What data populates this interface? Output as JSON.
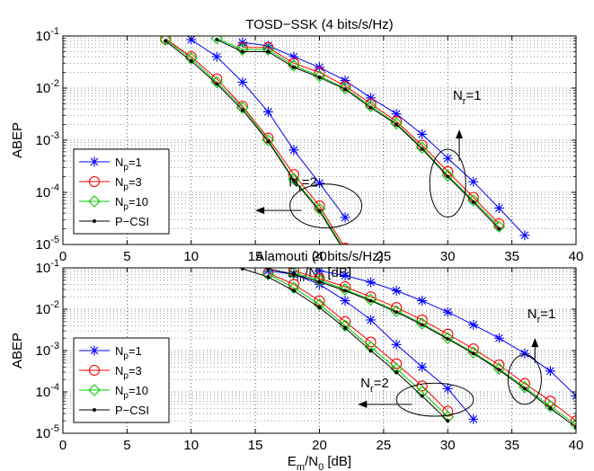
{
  "chart_data": [
    {
      "type": "line",
      "title": "TOSD−SSK (4 bits/s/Hz)",
      "xlabel": {
        "base": "E",
        "sub1": "m",
        "mid": "/N",
        "sub2": "0",
        "tail": " [dB]"
      },
      "ylabel": "ABEP",
      "xlim": [
        0,
        40
      ],
      "ylim_log10": [
        -5,
        -1
      ],
      "x_ticks": [
        0,
        5,
        10,
        15,
        20,
        25,
        30,
        35,
        40
      ],
      "y_ticks": [
        -5,
        -4,
        -3,
        -2,
        -1
      ],
      "y_scale": "log",
      "grid": true,
      "legend": {
        "placement": "bottom-left",
        "entries": [
          {
            "name": "Np=1",
            "main": "N",
            "sub": "p",
            "val": "=1",
            "marker": "star",
            "color": "#0000ff"
          },
          {
            "name": "Np=3",
            "main": "N",
            "sub": "p",
            "val": "=3",
            "marker": "circle",
            "color": "#ff0000"
          },
          {
            "name": "Np=10",
            "main": "N",
            "sub": "p",
            "val": "=10",
            "marker": "diamond",
            "color": "#00cc00"
          },
          {
            "name": "P-CSI",
            "main": "P−CSI",
            "sub": "",
            "val": "",
            "marker": "dot",
            "color": "#000000"
          }
        ]
      },
      "annotations": [
        {
          "main": "N",
          "sub": "r",
          "val": "=2",
          "text_x": 30.2,
          "text_y": 0.000212,
          "ellipse_cx": 20.5,
          "ellipse_cy": 5.5e-05,
          "ellipse_rx_db": 2.8,
          "ellipse_ry_dec": 0.42,
          "arrow_from_x": 18.6,
          "arrow_to_x": 15.0,
          "arrow_y": 4.5e-05,
          "arrow_dir": "left",
          "text_x_db": 17.6,
          "text_y_val": 0.00013
        },
        {
          "main": "N",
          "sub": "r",
          "val": "=1",
          "text_x_db": 30.4,
          "text_y_val": 0.006,
          "ellipse_cx": 30.0,
          "ellipse_cy": 0.00015,
          "ellipse_rx_db": 1.4,
          "ellipse_ry_dec": 0.65,
          "arrow_from_x": 30.9,
          "arrow_y_from": 0.0004,
          "arrow_y_to": 0.0016,
          "arrow_dir": "up"
        }
      ],
      "series": [
        {
          "name": "Np=1, Nr=2",
          "marker": "star",
          "color": "#0000ff",
          "x": [
            10,
            12,
            14,
            16,
            18,
            20,
            22
          ],
          "y": [
            0.085,
            0.04,
            0.013,
            0.0035,
            0.00065,
            0.00015,
            3.3e-05
          ]
        },
        {
          "name": "Np=3, Nr=2",
          "marker": "circle",
          "color": "#ff0000",
          "x": [
            8,
            10,
            12,
            14,
            16,
            18,
            20,
            22
          ],
          "y": [
            0.088,
            0.04,
            0.015,
            0.0045,
            0.0011,
            0.00022,
            5.5e-05,
            8.5e-06
          ]
        },
        {
          "name": "Np=10, Nr=2",
          "marker": "diamond",
          "color": "#00cc00",
          "x": [
            8,
            10,
            12,
            14,
            16,
            18,
            20,
            22
          ],
          "y": [
            0.085,
            0.037,
            0.013,
            0.0042,
            0.001,
            0.00018,
            4.8e-05,
            7.5e-06
          ]
        },
        {
          "name": "P-CSI, Nr=2",
          "marker": "dot",
          "color": "#000000",
          "x": [
            8,
            10,
            12,
            14,
            16,
            18,
            20,
            22
          ],
          "y": [
            0.08,
            0.033,
            0.012,
            0.0038,
            0.00095,
            0.00017,
            4.4e-05,
            7e-06
          ]
        },
        {
          "name": "Np=1, Nr=1",
          "marker": "star",
          "color": "#0000ff",
          "x": [
            14,
            16,
            18,
            20,
            22,
            24,
            26,
            28,
            30,
            32,
            34,
            36
          ],
          "y": [
            0.075,
            0.065,
            0.04,
            0.025,
            0.014,
            0.0065,
            0.0032,
            0.0013,
            0.00045,
            0.00016,
            5e-05,
            1.5e-05
          ]
        },
        {
          "name": "Np=3, Nr=1",
          "marker": "circle",
          "color": "#ff0000",
          "x": [
            14,
            16,
            18,
            20,
            22,
            24,
            26,
            28,
            30,
            32,
            34
          ],
          "y": [
            0.06,
            0.06,
            0.03,
            0.02,
            0.011,
            0.005,
            0.0023,
            0.0008,
            0.00025,
            8e-05,
            2.5e-05
          ]
        },
        {
          "name": "Np=10, Nr=1",
          "marker": "diamond",
          "color": "#00cc00",
          "x": [
            12,
            14,
            16,
            18,
            20,
            22,
            24,
            26,
            28,
            30,
            32,
            34
          ],
          "y": [
            0.09,
            0.055,
            0.055,
            0.027,
            0.017,
            0.01,
            0.0045,
            0.0021,
            0.00072,
            0.00021,
            7e-05,
            2.2e-05
          ]
        },
        {
          "name": "P-CSI, Nr=1",
          "marker": "dot",
          "color": "#000000",
          "x": [
            12,
            14,
            16,
            18,
            20,
            22,
            24,
            26,
            28,
            30,
            32,
            34
          ],
          "y": [
            0.085,
            0.05,
            0.05,
            0.025,
            0.016,
            0.0095,
            0.0042,
            0.002,
            0.00068,
            0.0002,
            6.5e-05,
            2e-05
          ]
        }
      ]
    },
    {
      "type": "line",
      "title": "Alamouti (4 bits/s/Hz)",
      "xlabel": {
        "base": "E",
        "sub1": "m",
        "mid": "/N",
        "sub2": "0",
        "tail": " [dB]"
      },
      "ylabel": "ABEP",
      "xlim": [
        0,
        40
      ],
      "ylim_log10": [
        -5,
        -1
      ],
      "x_ticks": [
        0,
        5,
        10,
        15,
        20,
        25,
        30,
        35,
        40
      ],
      "y_ticks": [
        -5,
        -4,
        -3,
        -2,
        -1
      ],
      "y_scale": "log",
      "grid": true,
      "legend": {
        "placement": "bottom-left",
        "entries": [
          {
            "name": "Np=1",
            "main": "N",
            "sub": "p",
            "val": "=1",
            "marker": "star",
            "color": "#0000ff"
          },
          {
            "name": "Np=3",
            "main": "N",
            "sub": "p",
            "val": "=3",
            "marker": "circle",
            "color": "#ff0000"
          },
          {
            "name": "Np=10",
            "main": "N",
            "sub": "p",
            "val": "=10",
            "marker": "diamond",
            "color": "#00cc00"
          },
          {
            "name": "P-CSI",
            "main": "P−CSI",
            "sub": "",
            "val": "",
            "marker": "dot",
            "color": "#000000"
          }
        ]
      },
      "annotations": [
        {
          "main": "N",
          "sub": "r",
          "val": "=2",
          "text_x_db": 23.2,
          "text_y_val": 0.00013,
          "ellipse_cx": 29.0,
          "ellipse_cy": 6.5e-05,
          "ellipse_rx_db": 3.0,
          "ellipse_ry_dec": 0.4,
          "arrow_from_x": 27.2,
          "arrow_to_x": 23.0,
          "arrow_y": 5e-05,
          "arrow_dir": "left"
        },
        {
          "main": "N",
          "sub": "r",
          "val": "=1",
          "text_x_db": 36.2,
          "text_y_val": 0.006,
          "ellipse_cx": 36.0,
          "ellipse_cy": 0.0002,
          "ellipse_rx_db": 1.3,
          "ellipse_ry_dec": 0.6,
          "arrow_from_x": 36.8,
          "arrow_y_from": 0.0005,
          "arrow_y_to": 0.002,
          "arrow_dir": "up"
        }
      ],
      "series": [
        {
          "name": "Np=1, Nr=2",
          "marker": "star",
          "color": "#0000ff",
          "x": [
            16,
            18,
            20,
            22,
            24,
            26,
            28,
            30,
            32
          ],
          "y": [
            0.085,
            0.07,
            0.04,
            0.016,
            0.0055,
            0.0014,
            0.0004,
            0.00012,
            2.2e-05
          ]
        },
        {
          "name": "Np=3, Nr=2",
          "marker": "circle",
          "color": "#ff0000",
          "x": [
            16,
            18,
            20,
            22,
            24,
            26,
            28,
            30
          ],
          "y": [
            0.075,
            0.04,
            0.016,
            0.005,
            0.0016,
            0.00048,
            0.00014,
            3.4e-05
          ]
        },
        {
          "name": "Np=10, Nr=2",
          "marker": "diamond",
          "color": "#00cc00",
          "x": [
            16,
            18,
            20,
            22,
            24,
            26,
            28,
            30
          ],
          "y": [
            0.07,
            0.033,
            0.013,
            0.004,
            0.0012,
            0.00036,
            0.0001,
            2.5e-05
          ]
        },
        {
          "name": "P-CSI, Nr=2",
          "marker": "dot",
          "color": "#000000",
          "x": [
            14,
            16,
            18,
            20,
            22,
            24,
            26,
            28,
            30
          ],
          "y": [
            0.095,
            0.06,
            0.028,
            0.011,
            0.0035,
            0.001,
            0.0003,
            8e-05,
            2e-05
          ]
        },
        {
          "name": "Np=1, Nr=1",
          "marker": "star",
          "color": "#0000ff",
          "x": [
            20,
            22,
            24,
            26,
            28,
            30,
            32,
            34,
            36,
            38,
            40
          ],
          "y": [
            0.085,
            0.065,
            0.045,
            0.028,
            0.016,
            0.0085,
            0.0042,
            0.002,
            0.00085,
            0.00032,
            8e-05
          ]
        },
        {
          "name": "Np=3, Nr=1",
          "marker": "circle",
          "color": "#ff0000",
          "x": [
            18,
            20,
            22,
            24,
            26,
            28,
            30,
            32,
            34,
            36,
            38,
            40
          ],
          "y": [
            0.085,
            0.055,
            0.035,
            0.02,
            0.011,
            0.0055,
            0.0025,
            0.0011,
            0.00045,
            0.00016,
            6e-05,
            2e-05
          ]
        },
        {
          "name": "Np=10, Nr=1",
          "marker": "diamond",
          "color": "#00cc00",
          "x": [
            18,
            20,
            22,
            24,
            26,
            28,
            30,
            32,
            34,
            36,
            38,
            40
          ],
          "y": [
            0.075,
            0.05,
            0.03,
            0.017,
            0.009,
            0.0045,
            0.002,
            0.0009,
            0.00036,
            0.00013,
            4.5e-05,
            1.6e-05
          ]
        },
        {
          "name": "P-CSI, Nr=1",
          "marker": "dot",
          "color": "#000000",
          "x": [
            16,
            18,
            20,
            22,
            24,
            26,
            28,
            30,
            32,
            34,
            36,
            38,
            40
          ],
          "y": [
            0.095,
            0.07,
            0.046,
            0.028,
            0.016,
            0.0085,
            0.0042,
            0.0019,
            0.00085,
            0.00034,
            0.00012,
            4e-05,
            1.4e-05
          ]
        }
      ]
    }
  ]
}
